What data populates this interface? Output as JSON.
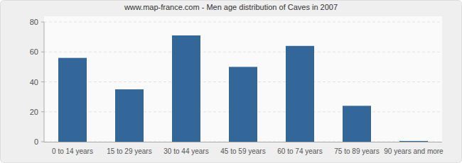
{
  "chart_data": {
    "type": "bar",
    "title": "www.map-france.com - Men age distribution of Caves in 2007",
    "categories": [
      "0 to 14 years",
      "15 to 29 years",
      "30 to 44 years",
      "45 to 59 years",
      "60 to 74 years",
      "75 to 89 years",
      "90 years and more"
    ],
    "values": [
      56,
      35,
      71,
      50,
      64,
      24,
      0.5
    ],
    "color": "#336699",
    "ylim": [
      0,
      80
    ],
    "yticks": [
      0,
      20,
      40,
      60,
      80
    ],
    "grid": true
  }
}
